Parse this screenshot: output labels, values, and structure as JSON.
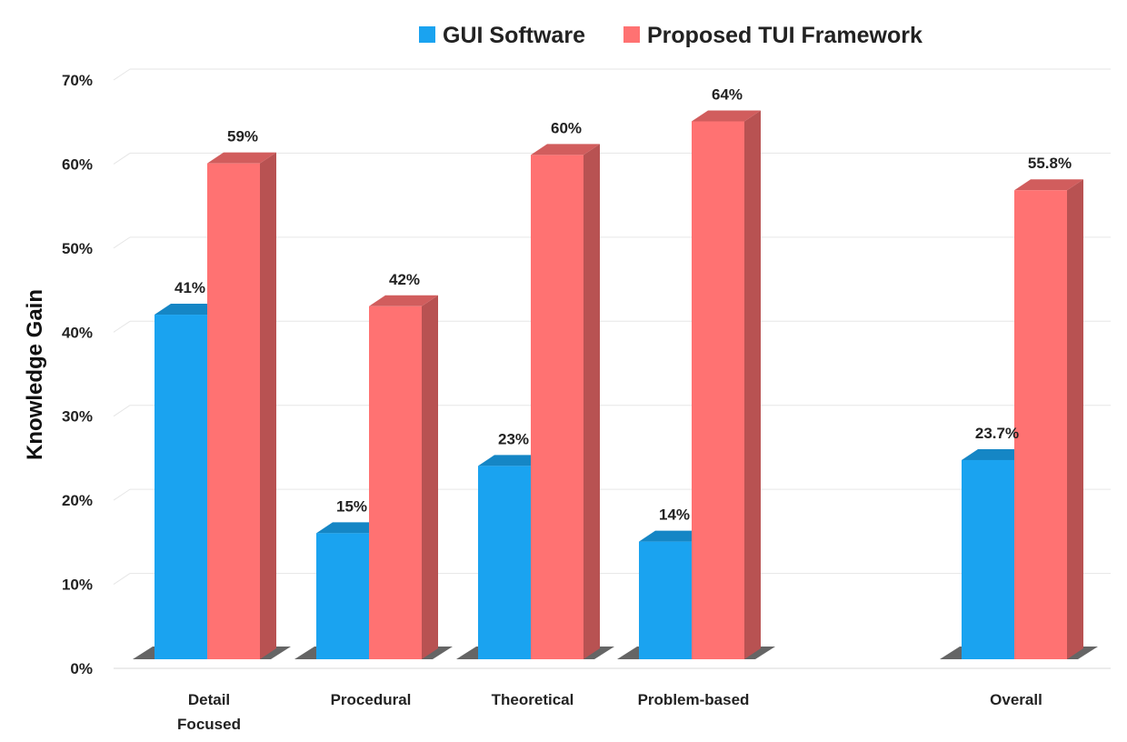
{
  "chart_data": {
    "type": "bar",
    "title": "",
    "xlabel": "",
    "ylabel": "Knowledge Gain",
    "ylim": [
      0,
      70
    ],
    "y_ticks": [
      "0%",
      "10%",
      "20%",
      "30%",
      "40%",
      "50%",
      "60%",
      "70%"
    ],
    "grid": true,
    "legend_position": "top",
    "categories": [
      [
        "Detail",
        "Focused"
      ],
      [
        "Procedural"
      ],
      [
        "Theoretical"
      ],
      [
        "Problem-based"
      ],
      [
        "Overall"
      ]
    ],
    "series": [
      {
        "name": "GUI Software",
        "color": "#1aa3f0",
        "values": [
          41,
          15,
          23,
          14,
          23.7
        ],
        "labels": [
          "41%",
          "15%",
          "23%",
          "14%",
          "23.7%"
        ]
      },
      {
        "name": "Proposed TUI Framework",
        "color": "#ff7272",
        "values": [
          59,
          42,
          60,
          64,
          55.8
        ],
        "labels": [
          "59%",
          "42%",
          "60%",
          "64%",
          "55.8%"
        ]
      }
    ]
  }
}
